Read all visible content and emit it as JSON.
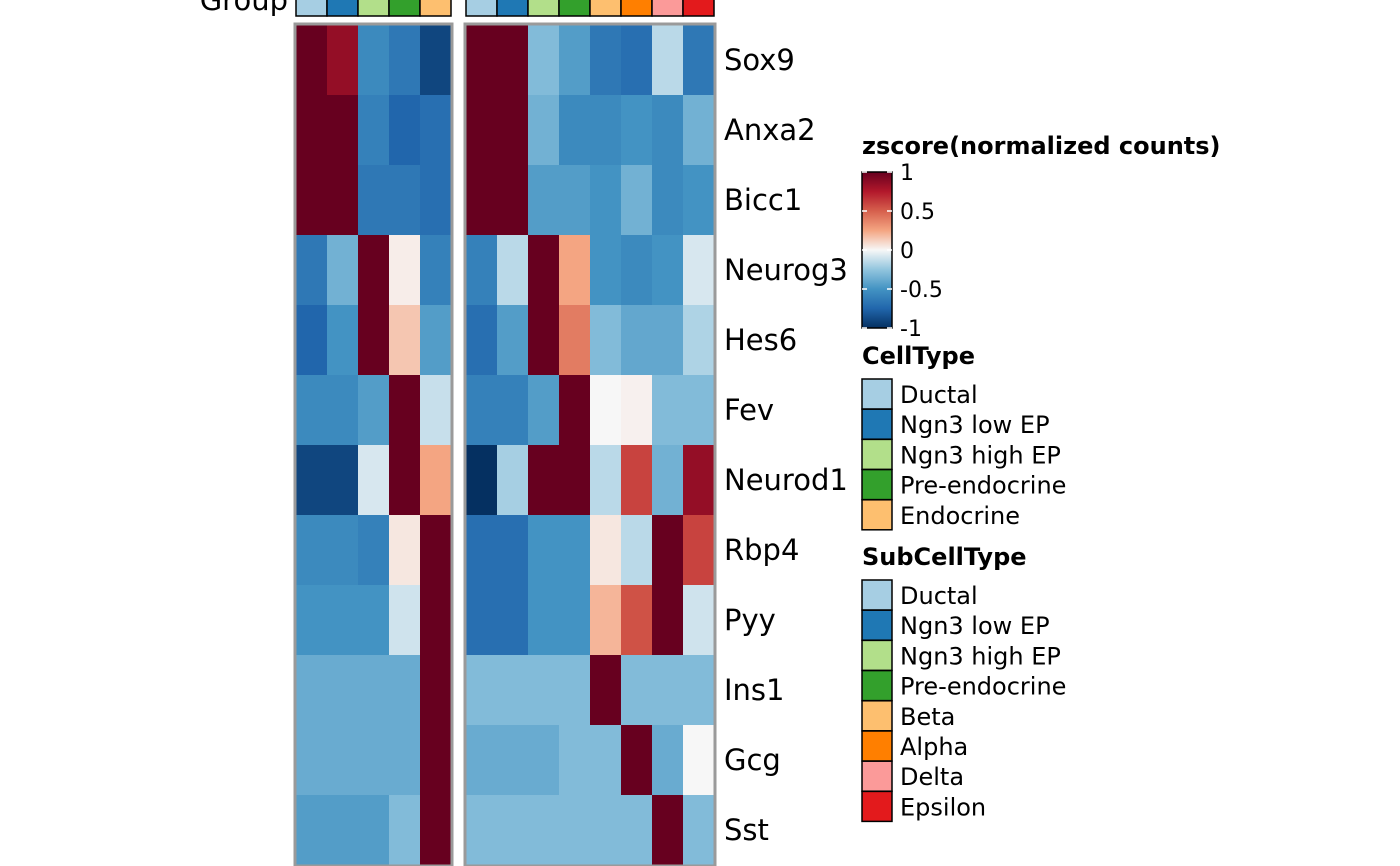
{
  "group_label": "Group",
  "chart_data": {
    "type": "heatmap",
    "title": "",
    "color_scale": {
      "title": "zscore(normalized counts)",
      "min": -1,
      "max": 1,
      "ticks": [
        "1",
        "0.5",
        "0",
        "-0.5",
        "-1"
      ],
      "tick_values": [
        1,
        0.5,
        0,
        -0.5,
        -1
      ],
      "low_color": "#053061",
      "mid_color": "#f7f7f7",
      "high_color": "#67001f"
    },
    "rows": [
      "Sox9",
      "Anxa2",
      "Bicc1",
      "Neurog3",
      "Hes6",
      "Fev",
      "Neurod1",
      "Rbp4",
      "Pyy",
      "Ins1",
      "Gcg",
      "Sst"
    ],
    "panels": [
      {
        "columns": [
          "Ductal",
          "Ngn3 low EP",
          "Ngn3 high EP",
          "Pre-endocrine",
          "Endocrine"
        ],
        "values": [
          [
            1.0,
            0.85,
            -0.55,
            -0.65,
            -0.9
          ],
          [
            1.0,
            1.0,
            -0.6,
            -0.75,
            -0.7
          ],
          [
            1.0,
            1.0,
            -0.65,
            -0.65,
            -0.7
          ],
          [
            -0.65,
            -0.35,
            1.0,
            0.03,
            -0.6
          ],
          [
            -0.75,
            -0.5,
            1.0,
            0.15,
            -0.45
          ],
          [
            -0.55,
            -0.55,
            -0.45,
            1.0,
            -0.12
          ],
          [
            -0.9,
            -0.9,
            -0.08,
            1.0,
            0.25
          ],
          [
            -0.55,
            -0.55,
            -0.6,
            0.05,
            1.0
          ],
          [
            -0.5,
            -0.5,
            -0.5,
            -0.1,
            1.0
          ],
          [
            -0.38,
            -0.38,
            -0.38,
            -0.38,
            1.0
          ],
          [
            -0.38,
            -0.38,
            -0.38,
            -0.38,
            1.0
          ],
          [
            -0.45,
            -0.45,
            -0.45,
            -0.3,
            1.0
          ]
        ]
      },
      {
        "columns": [
          "Ductal",
          "Ngn3 low EP",
          "Ngn3 high EP",
          "Pre-endocrine",
          "Beta",
          "Alpha",
          "Delta",
          "Epsilon"
        ],
        "values": [
          [
            1.0,
            1.0,
            -0.3,
            -0.45,
            -0.65,
            -0.7,
            -0.15,
            -0.65
          ],
          [
            1.0,
            1.0,
            -0.35,
            -0.55,
            -0.55,
            -0.5,
            -0.55,
            -0.35
          ],
          [
            1.0,
            1.0,
            -0.45,
            -0.45,
            -0.5,
            -0.35,
            -0.55,
            -0.5
          ],
          [
            -0.6,
            -0.15,
            1.0,
            0.25,
            -0.5,
            -0.55,
            -0.5,
            -0.08
          ],
          [
            -0.7,
            -0.45,
            1.0,
            0.4,
            -0.3,
            -0.4,
            -0.4,
            -0.18
          ],
          [
            -0.6,
            -0.6,
            -0.45,
            1.0,
            0.0,
            0.02,
            -0.3,
            -0.3
          ],
          [
            -1.0,
            -0.2,
            1.0,
            1.0,
            -0.15,
            0.6,
            -0.35,
            0.85
          ],
          [
            -0.7,
            -0.7,
            -0.5,
            -0.5,
            0.05,
            -0.15,
            1.0,
            0.6
          ],
          [
            -0.7,
            -0.7,
            -0.5,
            -0.5,
            0.2,
            0.55,
            1.0,
            -0.1
          ],
          [
            -0.3,
            -0.3,
            -0.3,
            -0.3,
            1.0,
            -0.3,
            -0.3,
            -0.3
          ],
          [
            -0.38,
            -0.38,
            -0.38,
            -0.3,
            -0.3,
            1.0,
            -0.38,
            0.0
          ],
          [
            -0.3,
            -0.3,
            -0.3,
            -0.3,
            -0.3,
            -0.3,
            1.0,
            -0.3
          ]
        ]
      }
    ],
    "legends": [
      {
        "title": "CellType",
        "items": [
          {
            "label": "Ductal",
            "color": "#a6cee3"
          },
          {
            "label": "Ngn3 low EP",
            "color": "#1f78b4"
          },
          {
            "label": "Ngn3 high EP",
            "color": "#b2df8a"
          },
          {
            "label": "Pre-endocrine",
            "color": "#33a02c"
          },
          {
            "label": "Endocrine",
            "color": "#fdbf6f"
          }
        ]
      },
      {
        "title": "SubCellType",
        "items": [
          {
            "label": "Ductal",
            "color": "#a6cee3"
          },
          {
            "label": "Ngn3 low EP",
            "color": "#1f78b4"
          },
          {
            "label": "Ngn3 high EP",
            "color": "#b2df8a"
          },
          {
            "label": "Pre-endocrine",
            "color": "#33a02c"
          },
          {
            "label": "Beta",
            "color": "#fdbf6f"
          },
          {
            "label": "Alpha",
            "color": "#ff7f00"
          },
          {
            "label": "Delta",
            "color": "#fb9a99"
          },
          {
            "label": "Epsilon",
            "color": "#e31a1c"
          }
        ]
      }
    ]
  }
}
